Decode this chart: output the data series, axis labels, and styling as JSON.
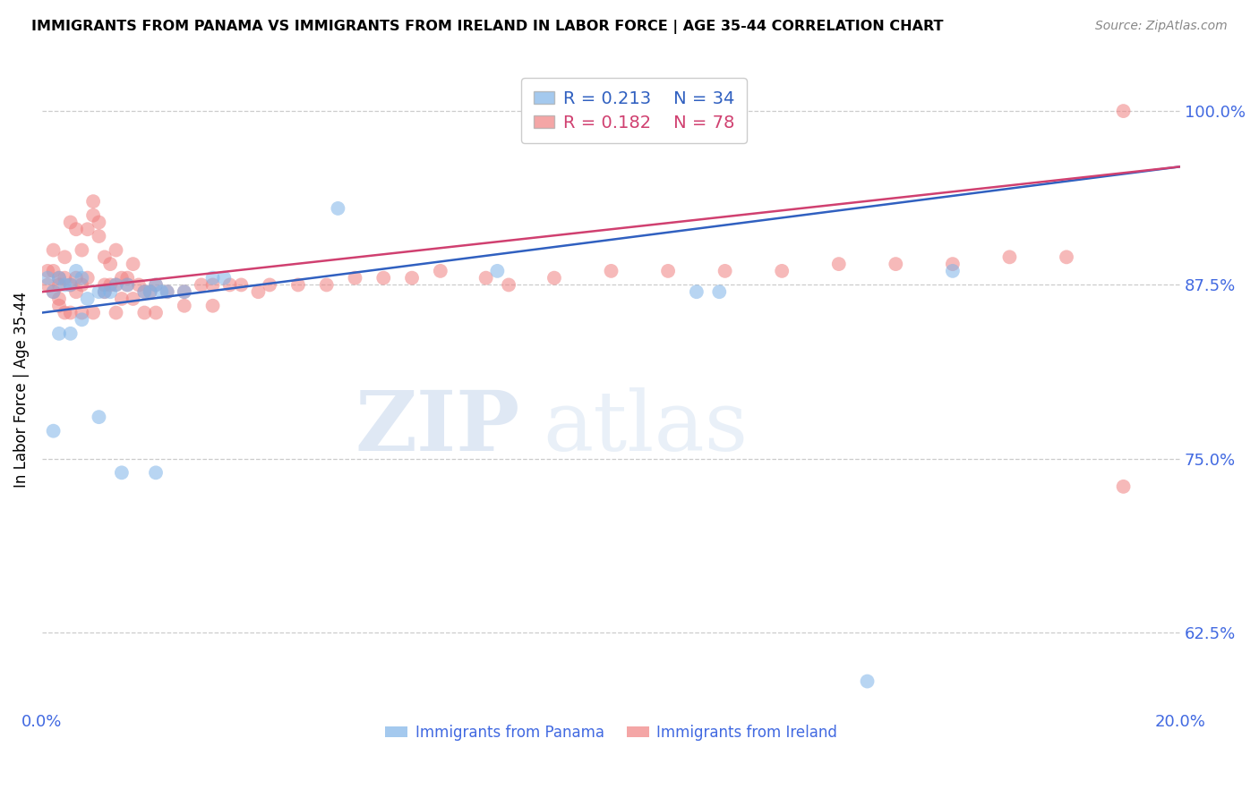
{
  "title": "IMMIGRANTS FROM PANAMA VS IMMIGRANTS FROM IRELAND IN LABOR FORCE | AGE 35-44 CORRELATION CHART",
  "source": "Source: ZipAtlas.com",
  "ylabel": "In Labor Force | Age 35-44",
  "xlim": [
    0.0,
    0.2
  ],
  "ylim": [
    0.57,
    1.03
  ],
  "xticks": [
    0.0,
    0.04,
    0.08,
    0.12,
    0.16,
    0.2
  ],
  "xtick_labels": [
    "0.0%",
    "",
    "",
    "",
    "",
    "20.0%"
  ],
  "yticks": [
    0.625,
    0.75,
    0.875,
    1.0
  ],
  "ytick_labels": [
    "62.5%",
    "75.0%",
    "87.5%",
    "100.0%"
  ],
  "panama_R": 0.213,
  "panama_N": 34,
  "ireland_R": 0.182,
  "ireland_N": 78,
  "panama_color": "#7EB3E8",
  "ireland_color": "#F08080",
  "trendline_panama_color": "#3060C0",
  "trendline_ireland_color": "#D04070",
  "watermark_zip": "ZIP",
  "watermark_atlas": "atlas",
  "panama_x": [
    0.001,
    0.002,
    0.003,
    0.004,
    0.005,
    0.006,
    0.007,
    0.008,
    0.01,
    0.011,
    0.012,
    0.013,
    0.015,
    0.018,
    0.019,
    0.02,
    0.021,
    0.022,
    0.025,
    0.03,
    0.032,
    0.052,
    0.08,
    0.115,
    0.119,
    0.145,
    0.16,
    0.002,
    0.003,
    0.005,
    0.007,
    0.01,
    0.014,
    0.02
  ],
  "panama_y": [
    0.88,
    0.87,
    0.88,
    0.875,
    0.875,
    0.885,
    0.88,
    0.865,
    0.87,
    0.87,
    0.87,
    0.875,
    0.875,
    0.87,
    0.87,
    0.875,
    0.87,
    0.87,
    0.87,
    0.88,
    0.88,
    0.93,
    0.885,
    0.87,
    0.87,
    0.59,
    0.885,
    0.77,
    0.84,
    0.84,
    0.85,
    0.78,
    0.74,
    0.74
  ],
  "ireland_x": [
    0.001,
    0.001,
    0.002,
    0.002,
    0.002,
    0.003,
    0.003,
    0.003,
    0.004,
    0.004,
    0.005,
    0.005,
    0.006,
    0.006,
    0.007,
    0.007,
    0.008,
    0.008,
    0.009,
    0.009,
    0.01,
    0.01,
    0.011,
    0.011,
    0.012,
    0.012,
    0.013,
    0.013,
    0.014,
    0.014,
    0.015,
    0.015,
    0.016,
    0.017,
    0.018,
    0.018,
    0.019,
    0.02,
    0.022,
    0.025,
    0.028,
    0.03,
    0.033,
    0.035,
    0.038,
    0.04,
    0.045,
    0.05,
    0.055,
    0.06,
    0.065,
    0.07,
    0.078,
    0.082,
    0.09,
    0.1,
    0.11,
    0.12,
    0.13,
    0.14,
    0.15,
    0.16,
    0.17,
    0.18,
    0.19,
    0.003,
    0.004,
    0.006,
    0.005,
    0.007,
    0.009,
    0.011,
    0.013,
    0.016,
    0.02,
    0.025,
    0.03,
    0.19
  ],
  "ireland_y": [
    0.885,
    0.875,
    0.9,
    0.885,
    0.87,
    0.88,
    0.875,
    0.865,
    0.895,
    0.88,
    0.92,
    0.875,
    0.88,
    0.915,
    0.9,
    0.875,
    0.915,
    0.88,
    0.935,
    0.925,
    0.92,
    0.91,
    0.895,
    0.875,
    0.89,
    0.875,
    0.9,
    0.875,
    0.88,
    0.865,
    0.88,
    0.875,
    0.89,
    0.875,
    0.87,
    0.855,
    0.87,
    0.875,
    0.87,
    0.87,
    0.875,
    0.875,
    0.875,
    0.875,
    0.87,
    0.875,
    0.875,
    0.875,
    0.88,
    0.88,
    0.88,
    0.885,
    0.88,
    0.875,
    0.88,
    0.885,
    0.885,
    0.885,
    0.885,
    0.89,
    0.89,
    0.89,
    0.895,
    0.895,
    1.0,
    0.86,
    0.855,
    0.87,
    0.855,
    0.855,
    0.855,
    0.87,
    0.855,
    0.865,
    0.855,
    0.86,
    0.86,
    0.73
  ],
  "panama_trendline_x": [
    0.0,
    0.2
  ],
  "panama_trendline_y": [
    0.855,
    0.96
  ],
  "ireland_trendline_x": [
    0.0,
    0.2
  ],
  "ireland_trendline_y": [
    0.87,
    0.96
  ]
}
